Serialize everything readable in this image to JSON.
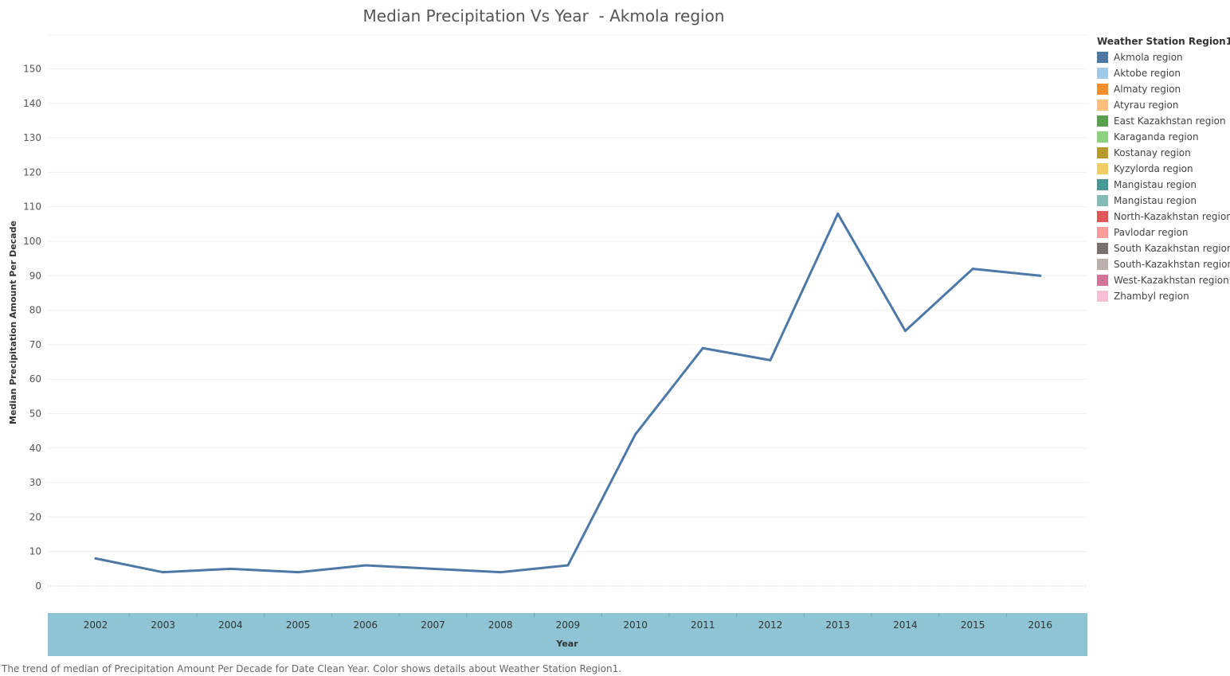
{
  "chart_data": {
    "type": "line",
    "title": "Median Precipitation Vs Year  - Akmola region",
    "xlabel": "Year",
    "ylabel": "Median Precipitation Amount Per Decade",
    "x": [
      "2002",
      "2003",
      "2004",
      "2005",
      "2006",
      "2007",
      "2008",
      "2009",
      "2010",
      "2011",
      "2012",
      "2013",
      "2014",
      "2015",
      "2016"
    ],
    "series": [
      {
        "name": "Akmola region",
        "color": "#4e79a7",
        "values": [
          8,
          4,
          5,
          4,
          6,
          5,
          4,
          6,
          44,
          69,
          65.5,
          108,
          74,
          92,
          90
        ]
      }
    ],
    "ylim": [
      -8,
      160
    ],
    "yticks": [
      0,
      10,
      20,
      30,
      40,
      50,
      60,
      70,
      80,
      90,
      100,
      110,
      120,
      130,
      140,
      150
    ],
    "grid": "horizontal",
    "legend_position": "right"
  },
  "legend": {
    "title": "Weather Station Region1",
    "items": [
      {
        "label": "Akmola region",
        "color": "#4e79a7"
      },
      {
        "label": "Aktobe region",
        "color": "#a0cbe8"
      },
      {
        "label": "Almaty region",
        "color": "#f28e2b"
      },
      {
        "label": "Atyrau region",
        "color": "#ffbe7d"
      },
      {
        "label": "East Kazakhstan region",
        "color": "#59a14f"
      },
      {
        "label": "Karaganda region",
        "color": "#8cd17d"
      },
      {
        "label": "Kostanay region",
        "color": "#b6992d"
      },
      {
        "label": "Kyzylorda region",
        "color": "#f1ce63"
      },
      {
        "label": "Mangistau  region",
        "color": "#499894"
      },
      {
        "label": "Mangistau region",
        "color": "#86bcb6"
      },
      {
        "label": "North-Kazakhstan region",
        "color": "#e15759"
      },
      {
        "label": "Pavlodar region",
        "color": "#ff9d9a"
      },
      {
        "label": "South Kazakhstan region",
        "color": "#79706e"
      },
      {
        "label": "South-Kazakhstan region",
        "color": "#bab0ac"
      },
      {
        "label": "West-Kazakhstan region",
        "color": "#d37295"
      },
      {
        "label": "Zhambyl region",
        "color": "#fabfd2"
      }
    ]
  },
  "caption": "The trend of median of Precipitation Amount Per Decade for Date Clean Year.  Color shows details about Weather Station Region1.",
  "colors": {
    "x_axis_band": "#8ec4d3",
    "gridline": "#efefef",
    "zero_line": "#bbbbbb"
  }
}
